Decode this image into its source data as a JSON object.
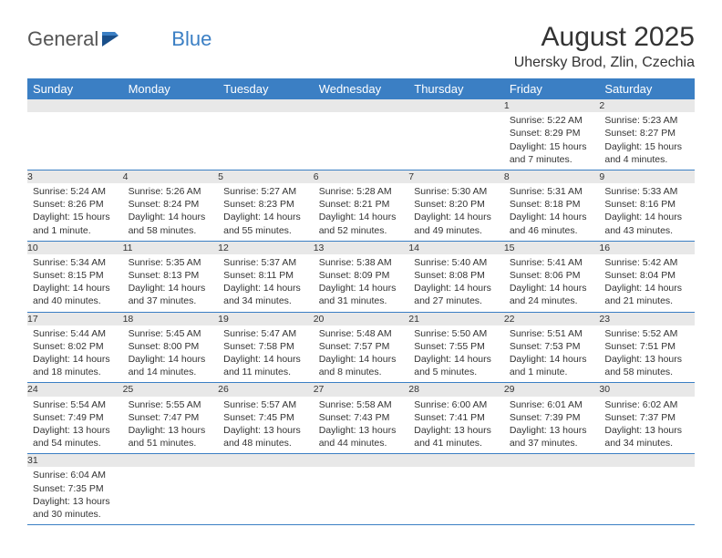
{
  "logo": {
    "text1": "General",
    "text2": "Blue"
  },
  "title": "August 2025",
  "location": "Uhersky Brod, Zlin, Czechia",
  "colors": {
    "header_bg": "#3b7fc4",
    "header_fg": "#ffffff",
    "daynum_bg": "#e8e8e8",
    "row_divider": "#3b7fc4",
    "text": "#333333",
    "logo_gray": "#555555",
    "logo_blue": "#3b7fc4",
    "page_bg": "#ffffff"
  },
  "typography": {
    "title_fontsize": 30,
    "location_fontsize": 16,
    "dayheader_fontsize": 13,
    "daynum_fontsize": 12,
    "body_fontsize": 10.5,
    "font_family": "Arial"
  },
  "day_headers": [
    "Sunday",
    "Monday",
    "Tuesday",
    "Wednesday",
    "Thursday",
    "Friday",
    "Saturday"
  ],
  "weeks": [
    [
      {
        "n": "",
        "lines": []
      },
      {
        "n": "",
        "lines": []
      },
      {
        "n": "",
        "lines": []
      },
      {
        "n": "",
        "lines": []
      },
      {
        "n": "",
        "lines": []
      },
      {
        "n": "1",
        "lines": [
          "Sunrise: 5:22 AM",
          "Sunset: 8:29 PM",
          "Daylight: 15 hours and 7 minutes."
        ]
      },
      {
        "n": "2",
        "lines": [
          "Sunrise: 5:23 AM",
          "Sunset: 8:27 PM",
          "Daylight: 15 hours and 4 minutes."
        ]
      }
    ],
    [
      {
        "n": "3",
        "lines": [
          "Sunrise: 5:24 AM",
          "Sunset: 8:26 PM",
          "Daylight: 15 hours and 1 minute."
        ]
      },
      {
        "n": "4",
        "lines": [
          "Sunrise: 5:26 AM",
          "Sunset: 8:24 PM",
          "Daylight: 14 hours and 58 minutes."
        ]
      },
      {
        "n": "5",
        "lines": [
          "Sunrise: 5:27 AM",
          "Sunset: 8:23 PM",
          "Daylight: 14 hours and 55 minutes."
        ]
      },
      {
        "n": "6",
        "lines": [
          "Sunrise: 5:28 AM",
          "Sunset: 8:21 PM",
          "Daylight: 14 hours and 52 minutes."
        ]
      },
      {
        "n": "7",
        "lines": [
          "Sunrise: 5:30 AM",
          "Sunset: 8:20 PM",
          "Daylight: 14 hours and 49 minutes."
        ]
      },
      {
        "n": "8",
        "lines": [
          "Sunrise: 5:31 AM",
          "Sunset: 8:18 PM",
          "Daylight: 14 hours and 46 minutes."
        ]
      },
      {
        "n": "9",
        "lines": [
          "Sunrise: 5:33 AM",
          "Sunset: 8:16 PM",
          "Daylight: 14 hours and 43 minutes."
        ]
      }
    ],
    [
      {
        "n": "10",
        "lines": [
          "Sunrise: 5:34 AM",
          "Sunset: 8:15 PM",
          "Daylight: 14 hours and 40 minutes."
        ]
      },
      {
        "n": "11",
        "lines": [
          "Sunrise: 5:35 AM",
          "Sunset: 8:13 PM",
          "Daylight: 14 hours and 37 minutes."
        ]
      },
      {
        "n": "12",
        "lines": [
          "Sunrise: 5:37 AM",
          "Sunset: 8:11 PM",
          "Daylight: 14 hours and 34 minutes."
        ]
      },
      {
        "n": "13",
        "lines": [
          "Sunrise: 5:38 AM",
          "Sunset: 8:09 PM",
          "Daylight: 14 hours and 31 minutes."
        ]
      },
      {
        "n": "14",
        "lines": [
          "Sunrise: 5:40 AM",
          "Sunset: 8:08 PM",
          "Daylight: 14 hours and 27 minutes."
        ]
      },
      {
        "n": "15",
        "lines": [
          "Sunrise: 5:41 AM",
          "Sunset: 8:06 PM",
          "Daylight: 14 hours and 24 minutes."
        ]
      },
      {
        "n": "16",
        "lines": [
          "Sunrise: 5:42 AM",
          "Sunset: 8:04 PM",
          "Daylight: 14 hours and 21 minutes."
        ]
      }
    ],
    [
      {
        "n": "17",
        "lines": [
          "Sunrise: 5:44 AM",
          "Sunset: 8:02 PM",
          "Daylight: 14 hours and 18 minutes."
        ]
      },
      {
        "n": "18",
        "lines": [
          "Sunrise: 5:45 AM",
          "Sunset: 8:00 PM",
          "Daylight: 14 hours and 14 minutes."
        ]
      },
      {
        "n": "19",
        "lines": [
          "Sunrise: 5:47 AM",
          "Sunset: 7:58 PM",
          "Daylight: 14 hours and 11 minutes."
        ]
      },
      {
        "n": "20",
        "lines": [
          "Sunrise: 5:48 AM",
          "Sunset: 7:57 PM",
          "Daylight: 14 hours and 8 minutes."
        ]
      },
      {
        "n": "21",
        "lines": [
          "Sunrise: 5:50 AM",
          "Sunset: 7:55 PM",
          "Daylight: 14 hours and 5 minutes."
        ]
      },
      {
        "n": "22",
        "lines": [
          "Sunrise: 5:51 AM",
          "Sunset: 7:53 PM",
          "Daylight: 14 hours and 1 minute."
        ]
      },
      {
        "n": "23",
        "lines": [
          "Sunrise: 5:52 AM",
          "Sunset: 7:51 PM",
          "Daylight: 13 hours and 58 minutes."
        ]
      }
    ],
    [
      {
        "n": "24",
        "lines": [
          "Sunrise: 5:54 AM",
          "Sunset: 7:49 PM",
          "Daylight: 13 hours and 54 minutes."
        ]
      },
      {
        "n": "25",
        "lines": [
          "Sunrise: 5:55 AM",
          "Sunset: 7:47 PM",
          "Daylight: 13 hours and 51 minutes."
        ]
      },
      {
        "n": "26",
        "lines": [
          "Sunrise: 5:57 AM",
          "Sunset: 7:45 PM",
          "Daylight: 13 hours and 48 minutes."
        ]
      },
      {
        "n": "27",
        "lines": [
          "Sunrise: 5:58 AM",
          "Sunset: 7:43 PM",
          "Daylight: 13 hours and 44 minutes."
        ]
      },
      {
        "n": "28",
        "lines": [
          "Sunrise: 6:00 AM",
          "Sunset: 7:41 PM",
          "Daylight: 13 hours and 41 minutes."
        ]
      },
      {
        "n": "29",
        "lines": [
          "Sunrise: 6:01 AM",
          "Sunset: 7:39 PM",
          "Daylight: 13 hours and 37 minutes."
        ]
      },
      {
        "n": "30",
        "lines": [
          "Sunrise: 6:02 AM",
          "Sunset: 7:37 PM",
          "Daylight: 13 hours and 34 minutes."
        ]
      }
    ],
    [
      {
        "n": "31",
        "lines": [
          "Sunrise: 6:04 AM",
          "Sunset: 7:35 PM",
          "Daylight: 13 hours and 30 minutes."
        ]
      },
      {
        "n": "",
        "lines": []
      },
      {
        "n": "",
        "lines": []
      },
      {
        "n": "",
        "lines": []
      },
      {
        "n": "",
        "lines": []
      },
      {
        "n": "",
        "lines": []
      },
      {
        "n": "",
        "lines": []
      }
    ]
  ]
}
